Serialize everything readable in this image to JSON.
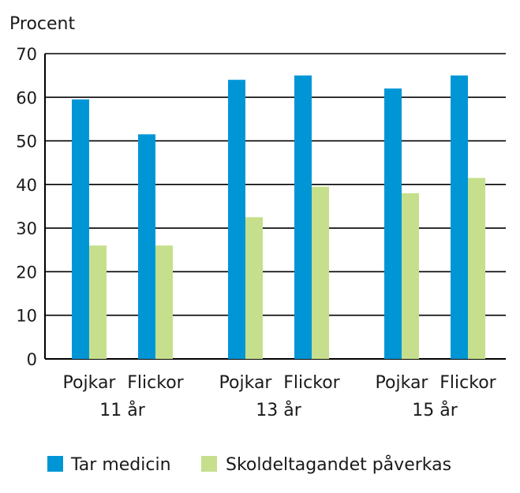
{
  "chart_data": {
    "type": "bar",
    "ylabel": "Procent",
    "ylim": [
      0,
      70
    ],
    "yticks": [
      0,
      10,
      20,
      30,
      40,
      50,
      60,
      70
    ],
    "grid": true,
    "legend_position": "bottom",
    "groups": [
      {
        "label": "11 år",
        "categories": [
          "Pojkar",
          "Flickor"
        ]
      },
      {
        "label": "13 år",
        "categories": [
          "Pojkar",
          "Flickor"
        ]
      },
      {
        "label": "15 år",
        "categories": [
          "Pojkar",
          "Flickor"
        ]
      }
    ],
    "categories": [
      "Pojkar 11 år",
      "Flickor 11 år",
      "Pojkar 13 år",
      "Flickor 13 år",
      "Pojkar 15 år",
      "Flickor 15 år"
    ],
    "series": [
      {
        "name": "Tar medicin",
        "color": "#0096d6",
        "values": [
          59.5,
          51.5,
          64,
          65,
          62,
          65
        ]
      },
      {
        "name": "Skoldeltagandet påverkas",
        "color": "#c6df8c",
        "values": [
          26,
          26,
          32.5,
          39.5,
          38,
          41.5
        ]
      }
    ]
  }
}
